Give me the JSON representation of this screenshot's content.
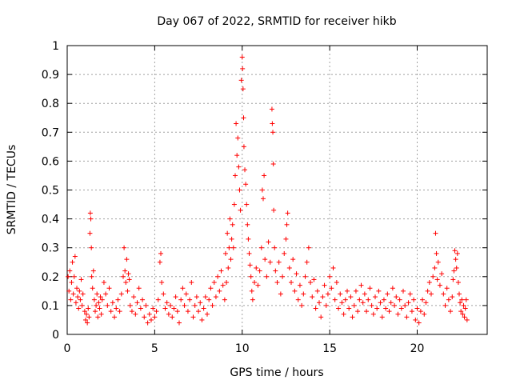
{
  "chart_data": {
    "type": "scatter",
    "title": "Day 067 of 2022, SRMTID for receiver hikb",
    "xlabel": "GPS time / hours",
    "ylabel": "SRMTID / TECUs",
    "xlim": [
      0,
      24
    ],
    "ylim": [
      0,
      1
    ],
    "xticks": [
      0,
      5,
      10,
      15,
      20
    ],
    "xtick_labels": [
      "0",
      "5",
      "10",
      "15",
      "20"
    ],
    "yticks": [
      0,
      0.1,
      0.2,
      0.3,
      0.4,
      0.5,
      0.6,
      0.7,
      0.8,
      0.9,
      1
    ],
    "ytick_labels": [
      "0",
      "0.1",
      "0.2",
      "0.3",
      "0.4",
      "0.5",
      "0.6",
      "0.7",
      "0.8",
      "0.9",
      "1"
    ],
    "grid": true,
    "marker": "+",
    "marker_color": "#ff0000",
    "series": [
      {
        "name": "SRMTID",
        "points": [
          [
            0.05,
            0.2
          ],
          [
            0.1,
            0.15
          ],
          [
            0.15,
            0.22
          ],
          [
            0.2,
            0.12
          ],
          [
            0.25,
            0.18
          ],
          [
            0.3,
            0.25
          ],
          [
            0.35,
            0.14
          ],
          [
            0.4,
            0.2
          ],
          [
            0.45,
            0.27
          ],
          [
            0.5,
            0.11
          ],
          [
            0.55,
            0.16
          ],
          [
            0.6,
            0.13
          ],
          [
            0.65,
            0.09
          ],
          [
            0.7,
            0.15
          ],
          [
            0.75,
            0.12
          ],
          [
            0.8,
            0.19
          ],
          [
            0.85,
            0.1
          ],
          [
            0.9,
            0.14
          ],
          [
            1.0,
            0.08
          ],
          [
            1.05,
            0.05
          ],
          [
            1.1,
            0.07
          ],
          [
            1.15,
            0.04
          ],
          [
            1.2,
            0.09
          ],
          [
            1.25,
            0.06
          ],
          [
            1.3,
            0.35
          ],
          [
            1.32,
            0.42
          ],
          [
            1.35,
            0.4
          ],
          [
            1.38,
            0.3
          ],
          [
            1.4,
            0.2
          ],
          [
            1.45,
            0.16
          ],
          [
            1.5,
            0.22
          ],
          [
            1.55,
            0.12
          ],
          [
            1.6,
            0.08
          ],
          [
            1.65,
            0.1
          ],
          [
            1.7,
            0.14
          ],
          [
            1.75,
            0.06
          ],
          [
            1.8,
            0.11
          ],
          [
            1.85,
            0.09
          ],
          [
            1.9,
            0.13
          ],
          [
            1.95,
            0.07
          ],
          [
            2.0,
            0.12
          ],
          [
            2.1,
            0.18
          ],
          [
            2.2,
            0.14
          ],
          [
            2.3,
            0.1
          ],
          [
            2.4,
            0.16
          ],
          [
            2.5,
            0.08
          ],
          [
            2.6,
            0.11
          ],
          [
            2.7,
            0.06
          ],
          [
            2.8,
            0.09
          ],
          [
            2.9,
            0.12
          ],
          [
            3.0,
            0.08
          ],
          [
            3.1,
            0.14
          ],
          [
            3.2,
            0.2
          ],
          [
            3.25,
            0.3
          ],
          [
            3.3,
            0.22
          ],
          [
            3.35,
            0.18
          ],
          [
            3.4,
            0.26
          ],
          [
            3.45,
            0.15
          ],
          [
            3.5,
            0.21
          ],
          [
            3.55,
            0.19
          ],
          [
            3.6,
            0.1
          ],
          [
            3.7,
            0.08
          ],
          [
            3.8,
            0.13
          ],
          [
            3.9,
            0.07
          ],
          [
            4.0,
            0.11
          ],
          [
            4.1,
            0.16
          ],
          [
            4.2,
            0.09
          ],
          [
            4.3,
            0.12
          ],
          [
            4.4,
            0.06
          ],
          [
            4.5,
            0.1
          ],
          [
            4.6,
            0.04
          ],
          [
            4.7,
            0.07
          ],
          [
            4.8,
            0.05
          ],
          [
            4.9,
            0.09
          ],
          [
            5.0,
            0.06
          ],
          [
            5.1,
            0.08
          ],
          [
            5.2,
            0.12
          ],
          [
            5.3,
            0.25
          ],
          [
            5.35,
            0.28
          ],
          [
            5.4,
            0.18
          ],
          [
            5.5,
            0.14
          ],
          [
            5.6,
            0.09
          ],
          [
            5.7,
            0.11
          ],
          [
            5.8,
            0.07
          ],
          [
            5.9,
            0.1
          ],
          [
            6.0,
            0.06
          ],
          [
            6.1,
            0.09
          ],
          [
            6.2,
            0.13
          ],
          [
            6.3,
            0.08
          ],
          [
            6.4,
            0.04
          ],
          [
            6.5,
            0.12
          ],
          [
            6.6,
            0.16
          ],
          [
            6.7,
            0.1
          ],
          [
            6.8,
            0.14
          ],
          [
            6.9,
            0.08
          ],
          [
            7.0,
            0.12
          ],
          [
            7.1,
            0.18
          ],
          [
            7.2,
            0.06
          ],
          [
            7.3,
            0.1
          ],
          [
            7.4,
            0.13
          ],
          [
            7.5,
            0.08
          ],
          [
            7.6,
            0.11
          ],
          [
            7.7,
            0.05
          ],
          [
            7.8,
            0.09
          ],
          [
            7.9,
            0.13
          ],
          [
            8.0,
            0.07
          ],
          [
            8.1,
            0.12
          ],
          [
            8.2,
            0.16
          ],
          [
            8.3,
            0.1
          ],
          [
            8.4,
            0.18
          ],
          [
            8.5,
            0.13
          ],
          [
            8.6,
            0.2
          ],
          [
            8.7,
            0.15
          ],
          [
            8.8,
            0.22
          ],
          [
            8.9,
            0.17
          ],
          [
            9.0,
            0.12
          ],
          [
            9.05,
            0.28
          ],
          [
            9.1,
            0.18
          ],
          [
            9.15,
            0.35
          ],
          [
            9.2,
            0.23
          ],
          [
            9.25,
            0.3
          ],
          [
            9.3,
            0.4
          ],
          [
            9.35,
            0.26
          ],
          [
            9.4,
            0.33
          ],
          [
            9.45,
            0.38
          ],
          [
            9.5,
            0.3
          ],
          [
            9.55,
            0.45
          ],
          [
            9.6,
            0.55
          ],
          [
            9.65,
            0.73
          ],
          [
            9.7,
            0.62
          ],
          [
            9.75,
            0.68
          ],
          [
            9.8,
            0.58
          ],
          [
            9.85,
            0.5
          ],
          [
            9.9,
            0.43
          ],
          [
            9.95,
            0.88
          ],
          [
            10.0,
            0.96
          ],
          [
            10.02,
            0.92
          ],
          [
            10.05,
            0.85
          ],
          [
            10.08,
            0.75
          ],
          [
            10.1,
            0.65
          ],
          [
            10.15,
            0.57
          ],
          [
            10.2,
            0.52
          ],
          [
            10.25,
            0.45
          ],
          [
            10.3,
            0.38
          ],
          [
            10.35,
            0.33
          ],
          [
            10.4,
            0.28
          ],
          [
            10.45,
            0.24
          ],
          [
            10.5,
            0.2
          ],
          [
            10.55,
            0.15
          ],
          [
            10.6,
            0.12
          ],
          [
            10.7,
            0.18
          ],
          [
            10.8,
            0.23
          ],
          [
            10.9,
            0.17
          ],
          [
            11.0,
            0.22
          ],
          [
            11.1,
            0.3
          ],
          [
            11.15,
            0.5
          ],
          [
            11.2,
            0.47
          ],
          [
            11.25,
            0.55
          ],
          [
            11.3,
            0.26
          ],
          [
            11.4,
            0.2
          ],
          [
            11.5,
            0.32
          ],
          [
            11.6,
            0.25
          ],
          [
            11.7,
            0.78
          ],
          [
            11.72,
            0.73
          ],
          [
            11.75,
            0.7
          ],
          [
            11.78,
            0.59
          ],
          [
            11.8,
            0.43
          ],
          [
            11.85,
            0.3
          ],
          [
            11.9,
            0.22
          ],
          [
            12.0,
            0.18
          ],
          [
            12.1,
            0.25
          ],
          [
            12.2,
            0.14
          ],
          [
            12.3,
            0.2
          ],
          [
            12.4,
            0.28
          ],
          [
            12.5,
            0.33
          ],
          [
            12.55,
            0.38
          ],
          [
            12.6,
            0.42
          ],
          [
            12.7,
            0.23
          ],
          [
            12.8,
            0.18
          ],
          [
            12.9,
            0.26
          ],
          [
            13.0,
            0.15
          ],
          [
            13.1,
            0.21
          ],
          [
            13.2,
            0.12
          ],
          [
            13.3,
            0.17
          ],
          [
            13.4,
            0.1
          ],
          [
            13.5,
            0.14
          ],
          [
            13.6,
            0.2
          ],
          [
            13.7,
            0.25
          ],
          [
            13.8,
            0.3
          ],
          [
            13.9,
            0.18
          ],
          [
            14.0,
            0.13
          ],
          [
            14.1,
            0.19
          ],
          [
            14.2,
            0.09
          ],
          [
            14.3,
            0.15
          ],
          [
            14.4,
            0.11
          ],
          [
            14.5,
            0.06
          ],
          [
            14.6,
            0.13
          ],
          [
            14.7,
            0.17
          ],
          [
            14.8,
            0.1
          ],
          [
            14.9,
            0.14
          ],
          [
            15.0,
            0.2
          ],
          [
            15.1,
            0.16
          ],
          [
            15.2,
            0.23
          ],
          [
            15.3,
            0.12
          ],
          [
            15.4,
            0.18
          ],
          [
            15.5,
            0.09
          ],
          [
            15.6,
            0.14
          ],
          [
            15.7,
            0.11
          ],
          [
            15.8,
            0.07
          ],
          [
            15.9,
            0.12
          ],
          [
            16.0,
            0.15
          ],
          [
            16.1,
            0.09
          ],
          [
            16.2,
            0.13
          ],
          [
            16.3,
            0.06
          ],
          [
            16.4,
            0.1
          ],
          [
            16.5,
            0.15
          ],
          [
            16.6,
            0.08
          ],
          [
            16.7,
            0.12
          ],
          [
            16.8,
            0.17
          ],
          [
            16.9,
            0.11
          ],
          [
            17.0,
            0.14
          ],
          [
            17.1,
            0.08
          ],
          [
            17.2,
            0.12
          ],
          [
            17.3,
            0.16
          ],
          [
            17.4,
            0.1
          ],
          [
            17.5,
            0.07
          ],
          [
            17.6,
            0.13
          ],
          [
            17.7,
            0.09
          ],
          [
            17.8,
            0.15
          ],
          [
            17.9,
            0.11
          ],
          [
            18.0,
            0.06
          ],
          [
            18.1,
            0.12
          ],
          [
            18.2,
            0.09
          ],
          [
            18.3,
            0.14
          ],
          [
            18.4,
            0.08
          ],
          [
            18.5,
            0.11
          ],
          [
            18.6,
            0.16
          ],
          [
            18.7,
            0.1
          ],
          [
            18.8,
            0.13
          ],
          [
            18.9,
            0.07
          ],
          [
            19.0,
            0.12
          ],
          [
            19.1,
            0.09
          ],
          [
            19.2,
            0.15
          ],
          [
            19.3,
            0.1
          ],
          [
            19.4,
            0.06
          ],
          [
            19.5,
            0.11
          ],
          [
            19.6,
            0.14
          ],
          [
            19.7,
            0.08
          ],
          [
            19.8,
            0.12
          ],
          [
            19.9,
            0.05
          ],
          [
            20.0,
            0.09
          ],
          [
            20.1,
            0.04
          ],
          [
            20.2,
            0.08
          ],
          [
            20.3,
            0.12
          ],
          [
            20.4,
            0.07
          ],
          [
            20.5,
            0.11
          ],
          [
            20.6,
            0.15
          ],
          [
            20.7,
            0.18
          ],
          [
            20.8,
            0.14
          ],
          [
            20.9,
            0.2
          ],
          [
            21.0,
            0.23
          ],
          [
            21.05,
            0.35
          ],
          [
            21.1,
            0.28
          ],
          [
            21.15,
            0.19
          ],
          [
            21.2,
            0.25
          ],
          [
            21.3,
            0.17
          ],
          [
            21.4,
            0.21
          ],
          [
            21.5,
            0.14
          ],
          [
            21.6,
            0.1
          ],
          [
            21.7,
            0.16
          ],
          [
            21.8,
            0.12
          ],
          [
            21.9,
            0.08
          ],
          [
            22.0,
            0.13
          ],
          [
            22.05,
            0.19
          ],
          [
            22.1,
            0.22
          ],
          [
            22.15,
            0.29
          ],
          [
            22.2,
            0.26
          ],
          [
            22.25,
            0.23
          ],
          [
            22.3,
            0.28
          ],
          [
            22.35,
            0.18
          ],
          [
            22.4,
            0.14
          ],
          [
            22.45,
            0.11
          ],
          [
            22.5,
            0.08
          ],
          [
            22.55,
            0.12
          ],
          [
            22.6,
            0.07
          ],
          [
            22.65,
            0.1
          ],
          [
            22.7,
            0.06
          ],
          [
            22.75,
            0.09
          ],
          [
            22.8,
            0.12
          ],
          [
            22.85,
            0.05
          ]
        ]
      }
    ]
  }
}
